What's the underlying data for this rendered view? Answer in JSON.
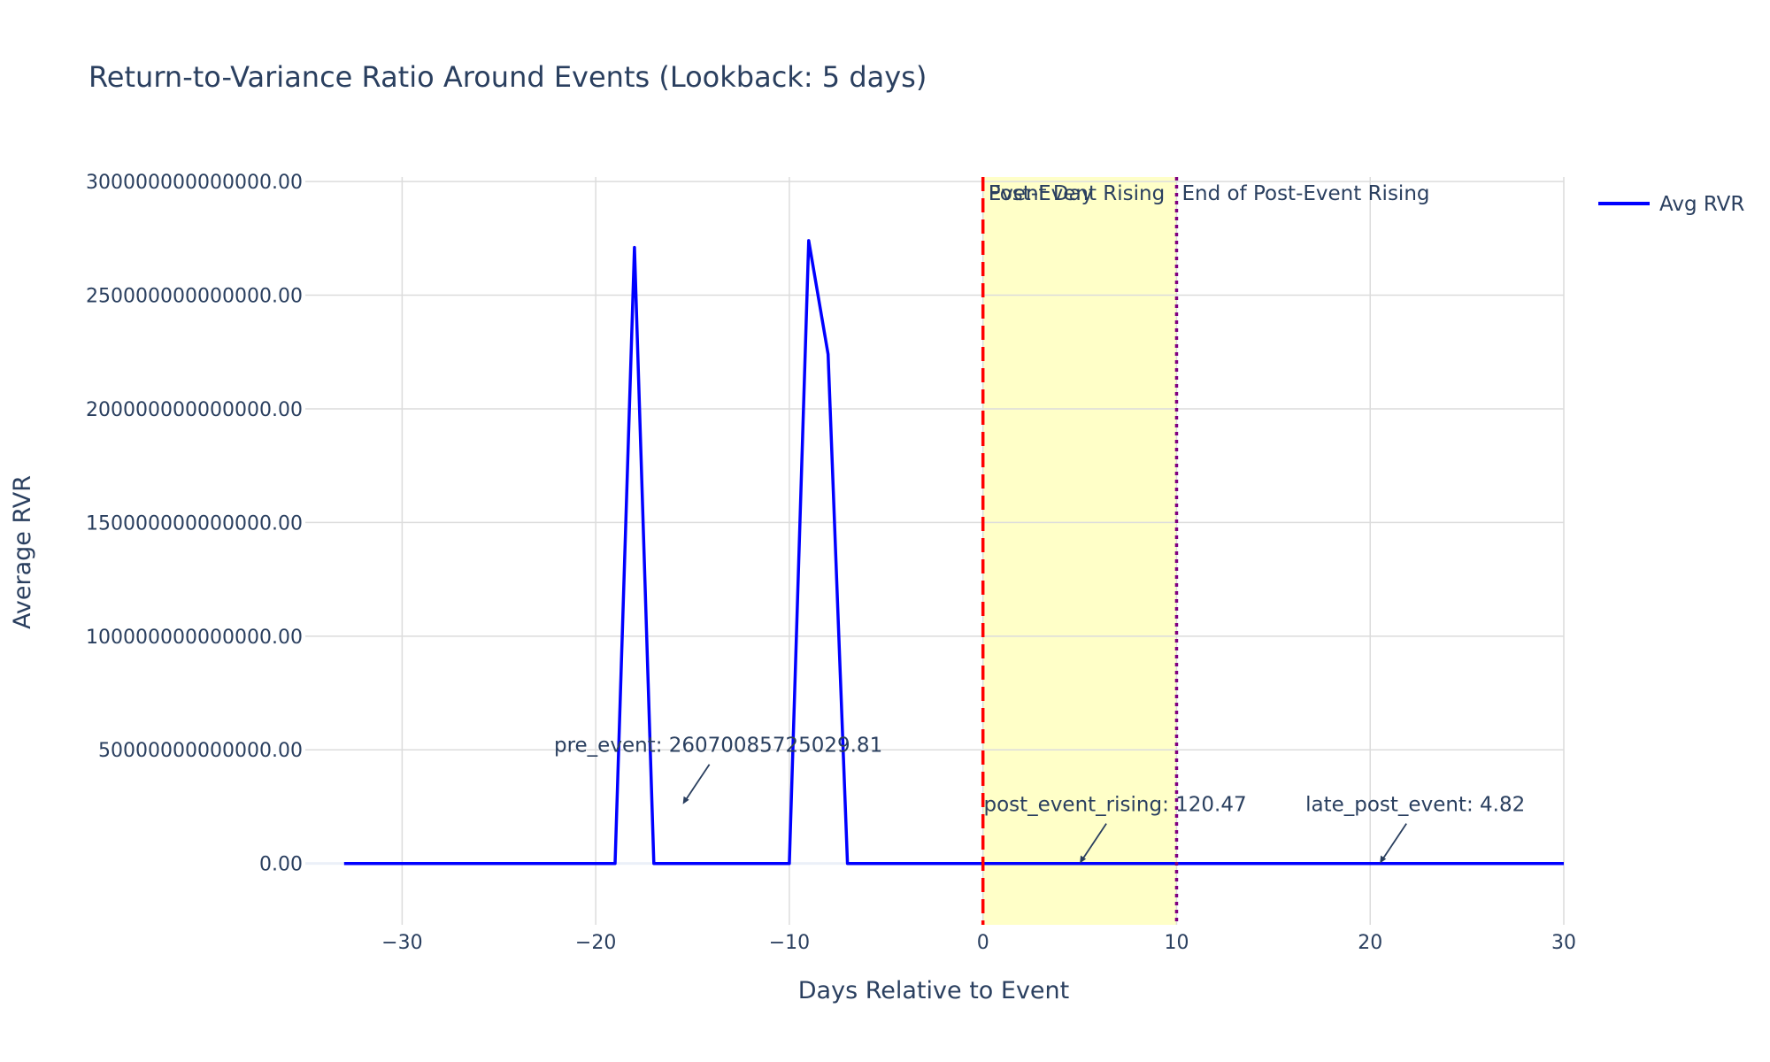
{
  "chart_data": {
    "type": "line",
    "title": "Return-to-Variance Ratio Around Events (Lookback: 5 days)",
    "xlabel": "Days Relative to Event",
    "ylabel": "Average RVR",
    "xlim": [
      -35,
      30
    ],
    "ylim": [
      -27000000000000,
      302000000000000
    ],
    "x_ticks": [
      -30,
      -20,
      -10,
      0,
      10,
      20,
      30
    ],
    "x_tick_labels": [
      "−30",
      "−20",
      "−10",
      "0",
      "10",
      "20",
      "30"
    ],
    "y_ticks": [
      0,
      50000000000000,
      100000000000000,
      150000000000000,
      200000000000000,
      250000000000000,
      300000000000000
    ],
    "y_tick_labels": [
      "0.00",
      "50000000000000.00",
      "100000000000000.00",
      "150000000000000.00",
      "200000000000000.00",
      "250000000000000.00",
      "300000000000000.00"
    ],
    "grid": true,
    "legend_position": "top-right",
    "series": [
      {
        "name": "Avg RVR",
        "color": "#0000ff",
        "x": [
          -33,
          -32,
          -31,
          -30,
          -29,
          -28,
          -27,
          -26,
          -25,
          -24,
          -23,
          -22,
          -21,
          -20,
          -19,
          -18,
          -17,
          -16,
          -15,
          -14,
          -13,
          -12,
          -11,
          -10,
          -9,
          -8,
          -7,
          -6,
          -5,
          -4,
          -3,
          -2,
          -1,
          0,
          1,
          2,
          3,
          4,
          5,
          6,
          7,
          8,
          9,
          10,
          11,
          12,
          13,
          14,
          15,
          16,
          17,
          18,
          19,
          20,
          21,
          22,
          23,
          24,
          25,
          26,
          27,
          28,
          29,
          30
        ],
        "y": [
          0,
          0,
          0,
          0,
          0,
          0,
          0,
          0,
          0,
          0,
          0,
          0,
          0,
          0,
          0,
          271000000000000,
          0,
          0,
          0,
          0,
          0,
          0,
          0,
          0,
          274000000000000,
          224000000000000,
          0,
          0,
          0,
          0,
          0,
          0,
          0,
          0,
          0,
          0,
          0,
          0,
          0,
          0,
          0,
          0,
          0,
          0,
          0,
          0,
          0,
          0,
          0,
          0,
          0,
          0,
          0,
          0,
          0,
          0,
          0,
          0,
          0,
          0,
          0,
          0,
          0,
          0
        ]
      }
    ],
    "shaded_region": {
      "x0": 0,
      "x1": 10,
      "color": "#ffffc8"
    },
    "vlines": [
      {
        "x": 0,
        "color": "#ff0000",
        "style": "dashed",
        "label": "Event Day"
      },
      {
        "x": 10,
        "color": "#800080",
        "style": "dotted",
        "label": "End of Post-Event Rising"
      }
    ],
    "region_label": "Post-Event Rising",
    "annotations": [
      {
        "text": "pre_event: 26070085725029.81",
        "x": -15.5,
        "y": 26070085725029.81
      },
      {
        "text": "post_event_rising: 120.47",
        "x": 5,
        "y": 120.47
      },
      {
        "text": "late_post_event: 4.82",
        "x": 20.5,
        "y": 4.82
      }
    ]
  }
}
